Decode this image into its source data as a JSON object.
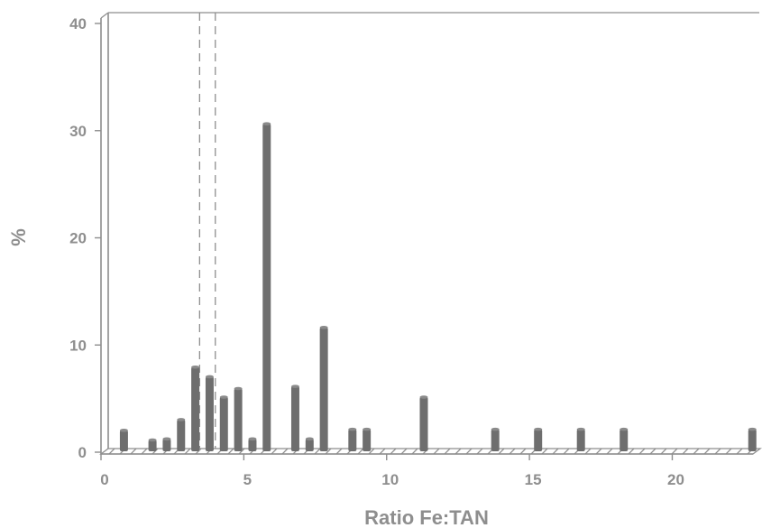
{
  "chart_data": {
    "type": "bar",
    "xlabel": "Ratio Fe:TAN",
    "ylabel": "%",
    "xlim": [
      0,
      22.7
    ],
    "ylim": [
      0,
      40
    ],
    "x_ticks": [
      0,
      5,
      10,
      15,
      20
    ],
    "y_ticks": [
      0,
      10,
      20,
      30,
      40
    ],
    "reference_lines_x": [
      3.2,
      3.75
    ],
    "grid": false,
    "legend": "none",
    "bar_color": "#6e6e6e",
    "axis_color": "#8e8e8e",
    "points": [
      {
        "x": 0.55,
        "y": 1.7
      },
      {
        "x": 1.55,
        "y": 0.8
      },
      {
        "x": 2.05,
        "y": 0.9
      },
      {
        "x": 2.55,
        "y": 2.7
      },
      {
        "x": 3.05,
        "y": 7.6
      },
      {
        "x": 3.55,
        "y": 6.7
      },
      {
        "x": 4.05,
        "y": 4.8
      },
      {
        "x": 4.55,
        "y": 5.6
      },
      {
        "x": 5.05,
        "y": 0.9
      },
      {
        "x": 5.55,
        "y": 30.3
      },
      {
        "x": 6.55,
        "y": 5.8
      },
      {
        "x": 7.05,
        "y": 0.9
      },
      {
        "x": 7.55,
        "y": 11.3
      },
      {
        "x": 8.55,
        "y": 1.8
      },
      {
        "x": 9.05,
        "y": 1.8
      },
      {
        "x": 11.05,
        "y": 4.8
      },
      {
        "x": 13.55,
        "y": 1.8
      },
      {
        "x": 15.05,
        "y": 1.8
      },
      {
        "x": 16.55,
        "y": 1.8
      },
      {
        "x": 18.05,
        "y": 1.8
      },
      {
        "x": 22.55,
        "y": 1.8
      }
    ]
  }
}
